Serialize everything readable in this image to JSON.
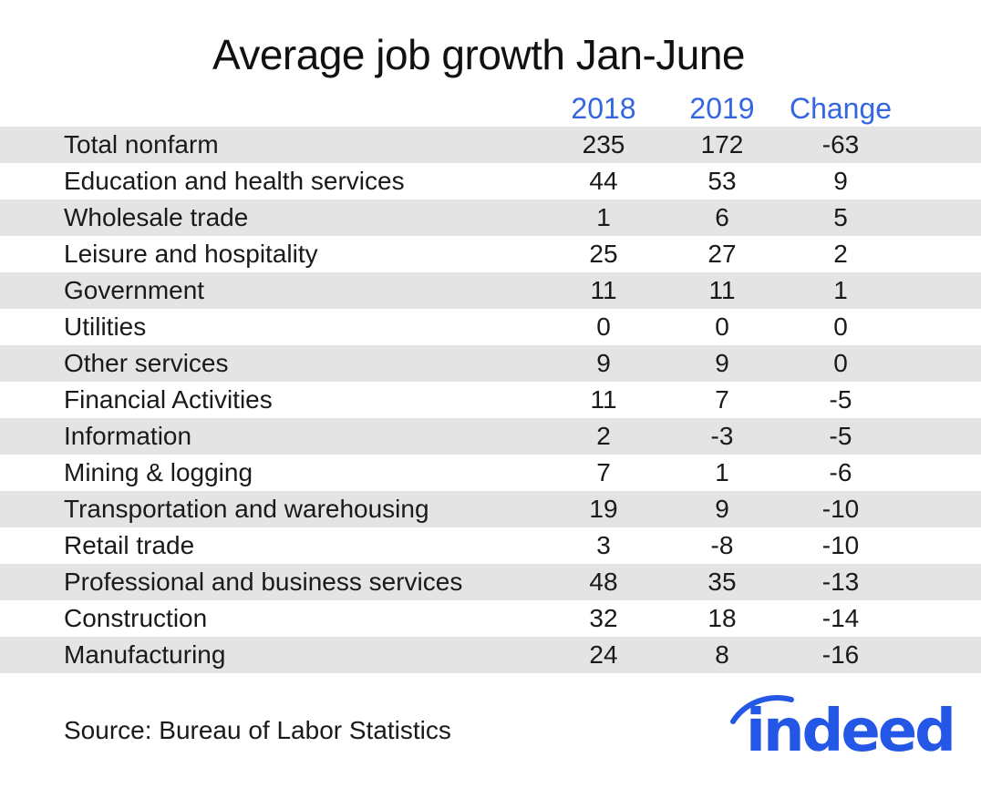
{
  "chart_data": {
    "type": "table",
    "title": "Average job growth Jan-June",
    "columns": [
      "2018",
      "2019",
      "Change"
    ],
    "rows": [
      {
        "label": "Total nonfarm",
        "values": [
          "235",
          "172",
          "-63"
        ]
      },
      {
        "label": "Education and health services",
        "values": [
          "44",
          "53",
          "9"
        ]
      },
      {
        "label": "Wholesale trade",
        "values": [
          "1",
          "6",
          "5"
        ]
      },
      {
        "label": "Leisure and hospitality",
        "values": [
          "25",
          "27",
          "2"
        ]
      },
      {
        "label": "Government",
        "values": [
          "11",
          "11",
          "1"
        ]
      },
      {
        "label": "Utilities",
        "values": [
          "0",
          "0",
          "0"
        ]
      },
      {
        "label": "Other services",
        "values": [
          "9",
          "9",
          "0"
        ]
      },
      {
        "label": "Financial Activities",
        "values": [
          "11",
          "7",
          "-5"
        ]
      },
      {
        "label": "Information",
        "values": [
          "2",
          "-3",
          "-5"
        ]
      },
      {
        "label": "Mining & logging",
        "values": [
          "7",
          "1",
          "-6"
        ]
      },
      {
        "label": "Transportation and warehousing",
        "values": [
          "19",
          "9",
          "-10"
        ]
      },
      {
        "label": "Retail trade",
        "values": [
          "3",
          "-8",
          "-10"
        ]
      },
      {
        "label": "Professional and business services",
        "values": [
          "48",
          "35",
          "-13"
        ]
      },
      {
        "label": "Construction",
        "values": [
          "32",
          "18",
          "-14"
        ]
      },
      {
        "label": "Manufacturing",
        "values": [
          "24",
          "8",
          "-16"
        ]
      }
    ],
    "source": "Source: Bureau of Labor Statistics",
    "header_color": "#3366e0",
    "shade_color": "#e4e4e4"
  },
  "logo": {
    "text": "indeed",
    "color": "#2557e6"
  }
}
